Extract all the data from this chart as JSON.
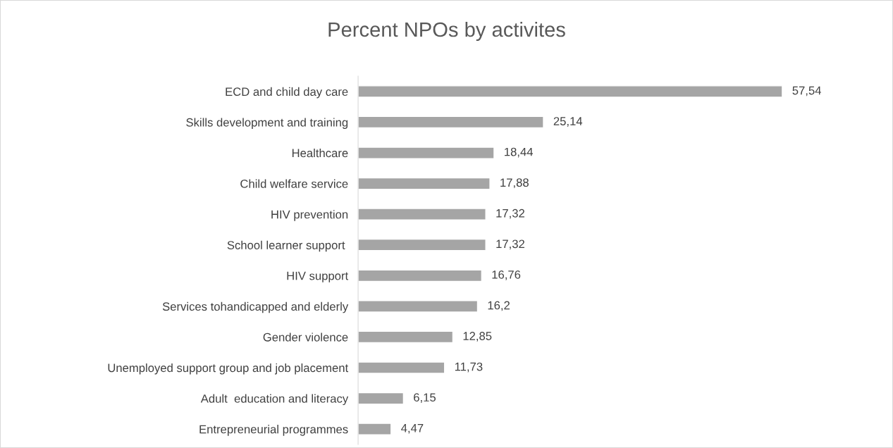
{
  "chart_data": {
    "type": "bar",
    "orientation": "horizontal",
    "title": "Percent NPOs by activites",
    "categories": [
      "ECD and child day care",
      "Skills development and training",
      "Healthcare",
      "Child welfare service",
      "HIV prevention",
      "School learner support ",
      "HIV support",
      "Services tohandicapped and elderly",
      "Gender violence",
      "Unemployed support group and job placement",
      "Adult  education and literacy",
      "Entrepreneurial programmes"
    ],
    "values": [
      57.54,
      25.14,
      18.44,
      17.88,
      17.32,
      17.32,
      16.76,
      16.2,
      12.85,
      11.73,
      6.15,
      4.47
    ],
    "value_labels": [
      "57,54",
      "25,14",
      "18,44",
      "17,88",
      "17,32",
      "17,32",
      "16,76",
      "16,2",
      "12,85",
      "11,73",
      "6,15",
      "4,47"
    ],
    "color": "#a5a5a5",
    "grid": false,
    "legend": false
  }
}
